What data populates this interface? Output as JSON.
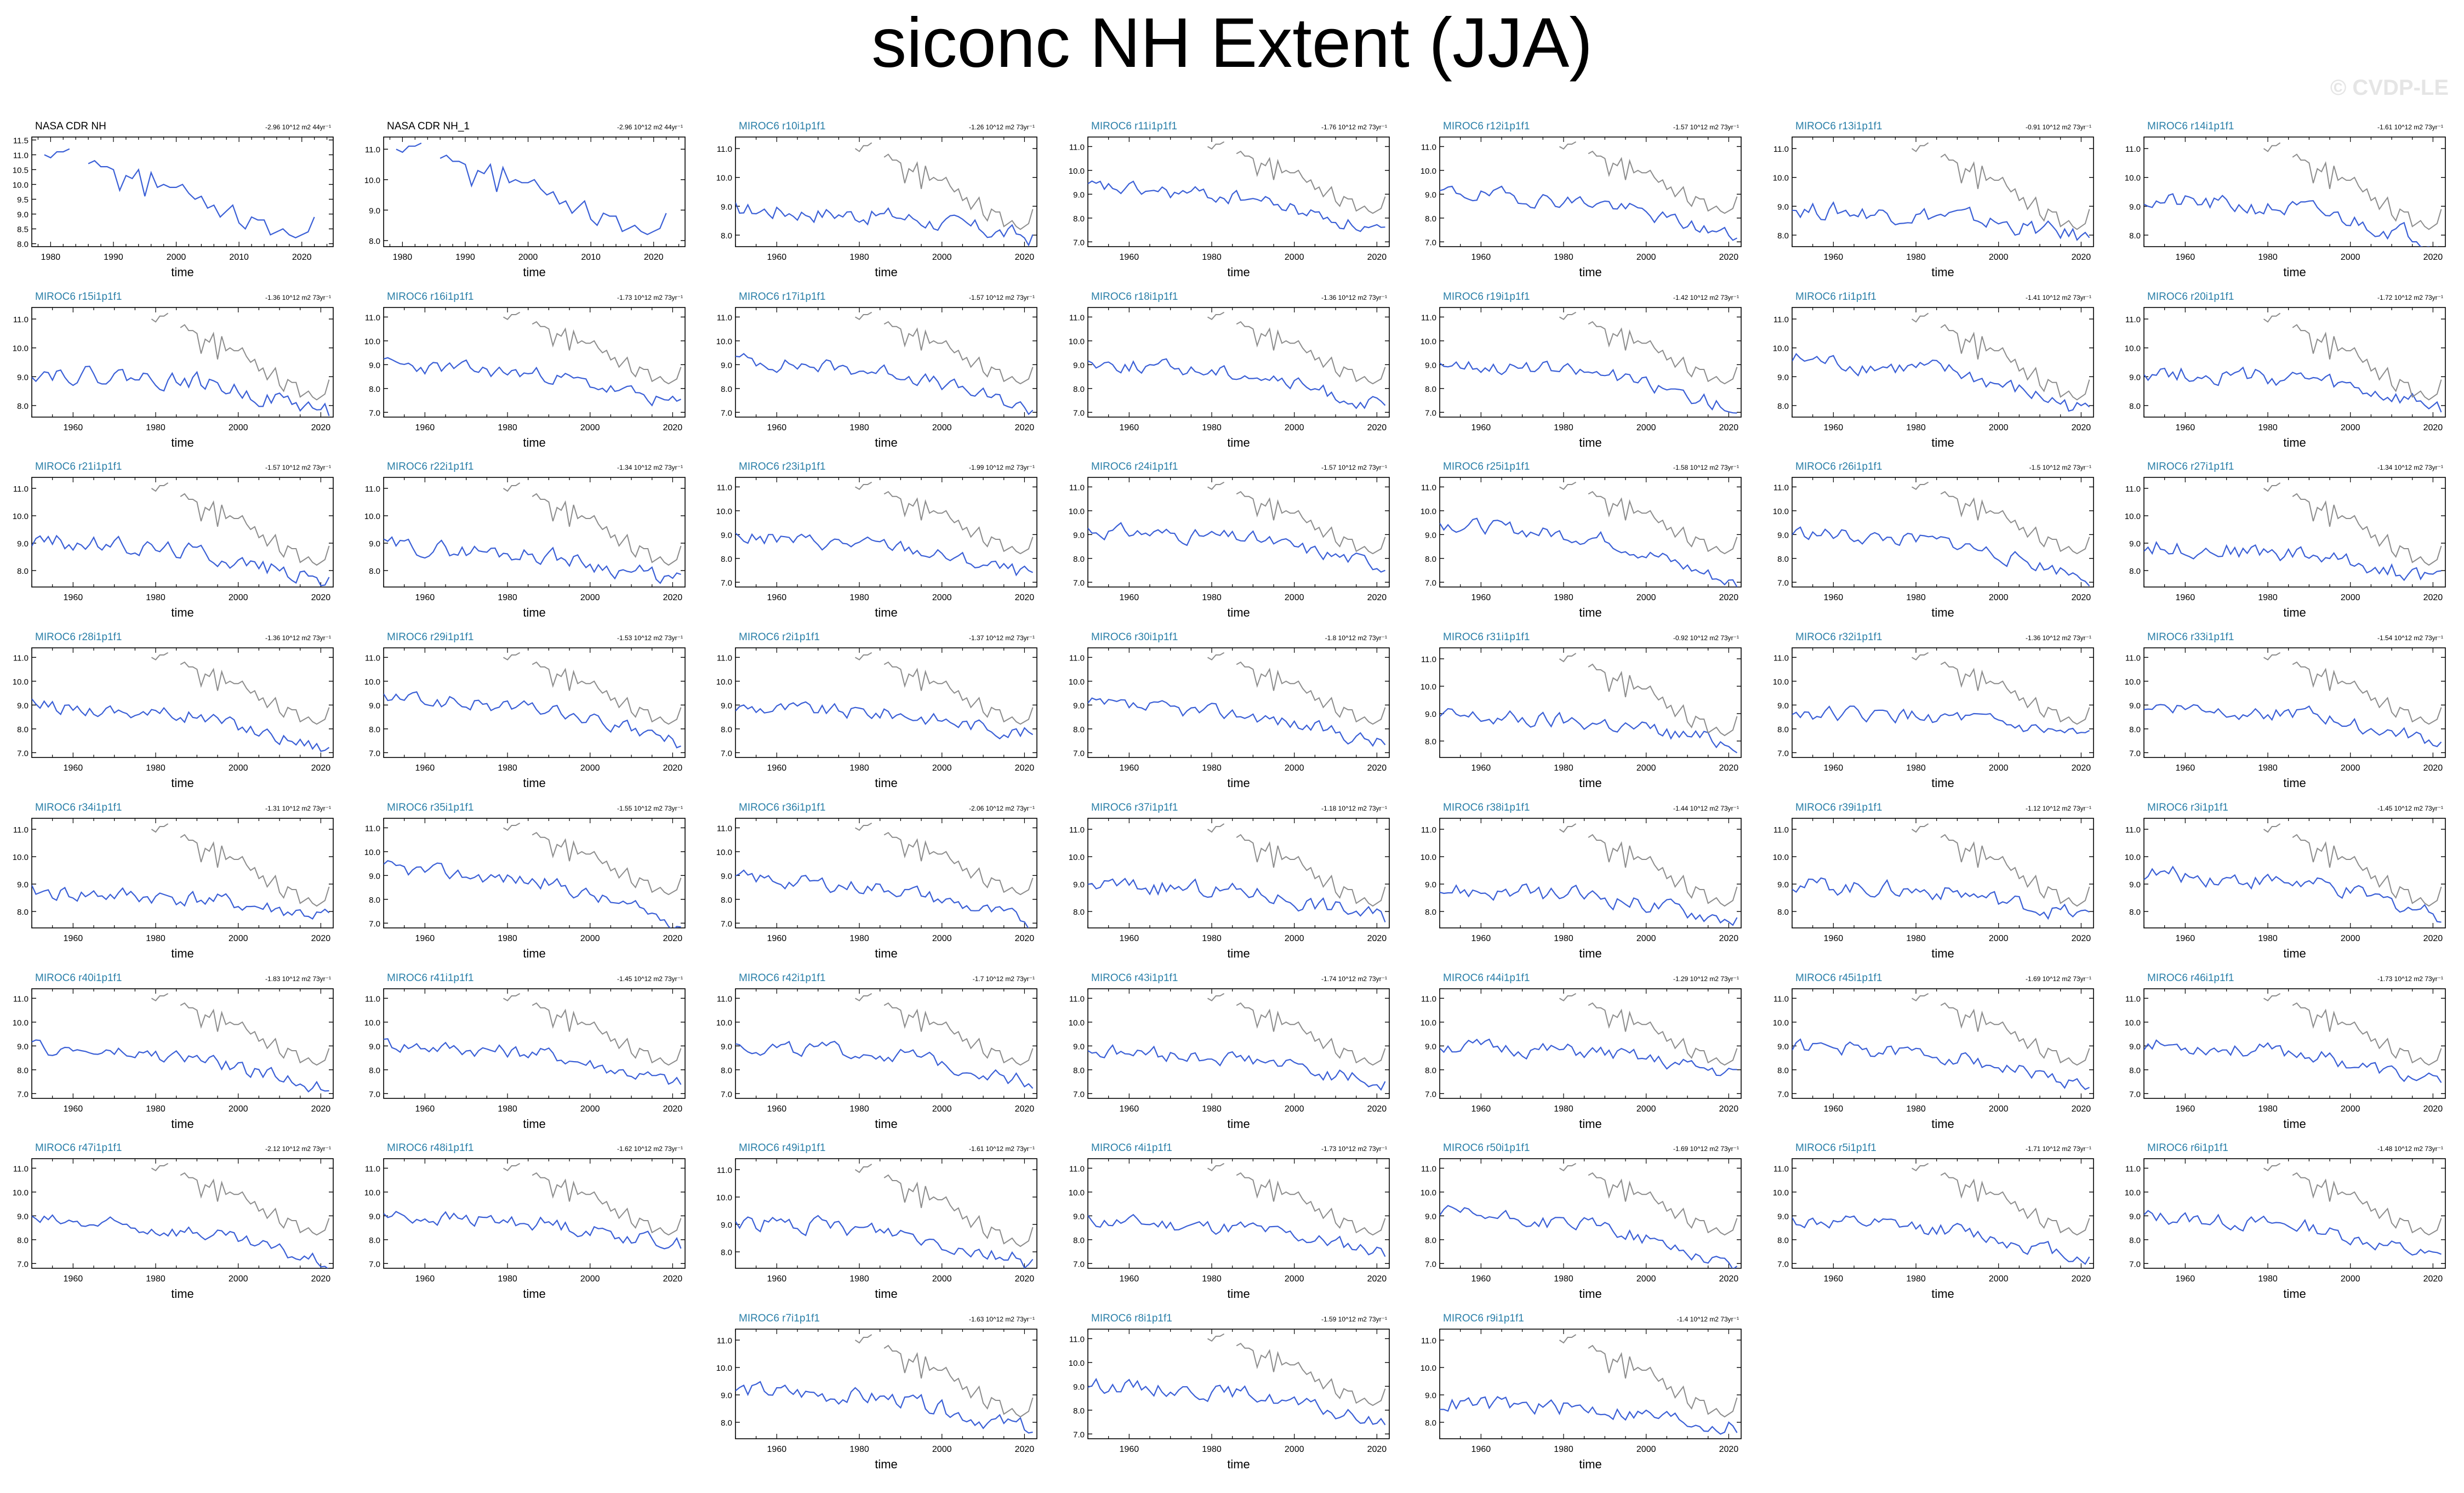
{
  "title": "siconc NH Extent (JJA)",
  "watermark": "© CVDP-LE",
  "colors": {
    "obs_line": "#3a5fd6",
    "model_line": "#3a5fd6",
    "obs_overlay": "#8c8c8c",
    "obs_title": "#000000",
    "model_title": "#2a7fa8",
    "axis": "#000000"
  },
  "chart_data": {
    "type": "line",
    "xlabel": "time",
    "layout": "small multiples, 7 columns",
    "observation_overlay": "NASA CDR NH (gray, 1979-2022) drawn on every model panel",
    "obs_series": {
      "years": [
        1979,
        1980,
        1981,
        1982,
        1983,
        1984,
        1985,
        1986,
        1987,
        1988,
        1989,
        1990,
        1991,
        1992,
        1993,
        1994,
        1995,
        1996,
        1997,
        1998,
        1999,
        2000,
        2001,
        2002,
        2003,
        2004,
        2005,
        2006,
        2007,
        2008,
        2009,
        2010,
        2011,
        2012,
        2013,
        2014,
        2015,
        2016,
        2017,
        2018,
        2019,
        2020,
        2021,
        2022
      ],
      "values": [
        11.0,
        10.9,
        11.1,
        11.1,
        11.2,
        null,
        null,
        10.7,
        10.8,
        10.6,
        10.6,
        10.5,
        9.8,
        10.3,
        10.2,
        10.5,
        9.6,
        10.4,
        9.9,
        10.0,
        9.9,
        9.9,
        10.0,
        9.7,
        9.5,
        9.6,
        9.2,
        9.3,
        8.9,
        9.1,
        9.3,
        8.7,
        8.5,
        8.9,
        8.8,
        8.8,
        8.3,
        8.4,
        8.5,
        8.3,
        8.2,
        8.3,
        8.4,
        8.9
      ]
    },
    "panels": [
      {
        "title": "NASA CDR NH",
        "trend": "-2.96 10^12 m2 44yr⁻¹",
        "kind": "obs",
        "xlim": [
          1977,
          2025
        ],
        "xticks": [
          1980,
          1990,
          2000,
          2010,
          2020
        ],
        "yticks": [
          8.0,
          8.5,
          9.0,
          9.5,
          10.0,
          10.5,
          11.0,
          11.5
        ],
        "ylim": [
          7.9,
          11.6
        ]
      },
      {
        "title": "NASA CDR NH_1",
        "trend": "-2.96 10^12 m2 44yr⁻¹",
        "kind": "obs",
        "xlim": [
          1977,
          2025
        ],
        "xticks": [
          1980,
          1990,
          2000,
          2010,
          2020
        ],
        "yticks": [
          8.0,
          9.0,
          10.0,
          11.0
        ],
        "ylim": [
          7.8,
          11.4
        ]
      },
      {
        "title": "MIROC6 r10i1p1f1",
        "trend": "-1.26 10^12 m2 73yr⁻¹",
        "yticks": [
          8.0,
          9.0,
          10.0,
          11.0
        ],
        "ylim": [
          7.6,
          11.4
        ],
        "seed": 10,
        "start": 8.9,
        "end": 7.9
      },
      {
        "title": "MIROC6 r11i1p1f1",
        "trend": "-1.76 10^12 m2 73yr⁻¹",
        "yticks": [
          7.0,
          8.0,
          9.0,
          10.0,
          11.0
        ],
        "ylim": [
          6.8,
          11.4
        ],
        "seed": 11,
        "start": 9.3,
        "end": 7.4
      },
      {
        "title": "MIROC6 r12i1p1f1",
        "trend": "-1.57 10^12 m2 73yr⁻¹",
        "yticks": [
          7.0,
          8.0,
          9.0,
          10.0,
          11.0
        ],
        "ylim": [
          6.8,
          11.4
        ],
        "seed": 12,
        "start": 9.1,
        "end": 7.2
      },
      {
        "title": "MIROC6 r13i1p1f1",
        "trend": "-0.91 10^12 m2 73yr⁻¹",
        "yticks": [
          8.0,
          9.0,
          10.0,
          11.0
        ],
        "ylim": [
          7.6,
          11.4
        ],
        "seed": 13,
        "start": 8.9,
        "end": 7.9
      },
      {
        "title": "MIROC6 r14i1p1f1",
        "trend": "-1.61 10^12 m2 73yr⁻¹",
        "yticks": [
          8.0,
          9.0,
          10.0,
          11.0
        ],
        "ylim": [
          7.6,
          11.4
        ],
        "seed": 14,
        "start": 9.2,
        "end": 7.8
      },
      {
        "title": "MIROC6 r15i1p1f1",
        "trend": "-1.36 10^12 m2 73yr⁻¹",
        "yticks": [
          8.0,
          9.0,
          10.0,
          11.0
        ],
        "ylim": [
          7.6,
          11.4
        ],
        "seed": 15,
        "start": 9.2,
        "end": 7.8
      },
      {
        "title": "MIROC6 r16i1p1f1",
        "trend": "-1.73 10^12 m2 73yr⁻¹",
        "yticks": [
          7.0,
          8.0,
          9.0,
          10.0,
          11.0
        ],
        "ylim": [
          6.8,
          11.4
        ],
        "seed": 16,
        "start": 9.0,
        "end": 7.3
      },
      {
        "title": "MIROC6 r17i1p1f1",
        "trend": "-1.57 10^12 m2 73yr⁻¹",
        "yticks": [
          7.0,
          8.0,
          9.0,
          10.0,
          11.0
        ],
        "ylim": [
          6.8,
          11.4
        ],
        "seed": 17,
        "start": 9.2,
        "end": 7.1
      },
      {
        "title": "MIROC6 r18i1p1f1",
        "trend": "-1.36 10^12 m2 73yr⁻¹",
        "yticks": [
          7.0,
          8.0,
          9.0,
          10.0,
          11.0
        ],
        "ylim": [
          6.8,
          11.4
        ],
        "seed": 18,
        "start": 9.1,
        "end": 7.2
      },
      {
        "title": "MIROC6 r19i1p1f1",
        "trend": "-1.42 10^12 m2 73yr⁻¹",
        "yticks": [
          7.0,
          8.0,
          9.0,
          10.0,
          11.0
        ],
        "ylim": [
          6.8,
          11.4
        ],
        "seed": 19,
        "start": 9.1,
        "end": 7.2
      },
      {
        "title": "MIROC6 r1i1p1f1",
        "trend": "-1.41 10^12 m2 73yr⁻¹",
        "yticks": [
          8.0,
          9.0,
          10.0,
          11.0
        ],
        "ylim": [
          7.6,
          11.4
        ],
        "seed": 1,
        "start": 9.6,
        "end": 7.8
      },
      {
        "title": "MIROC6 r20i1p1f1",
        "trend": "-1.72 10^12 m2 73yr⁻¹",
        "yticks": [
          8.0,
          9.0,
          10.0,
          11.0
        ],
        "ylim": [
          7.6,
          11.4
        ],
        "seed": 20,
        "start": 9.2,
        "end": 7.9
      },
      {
        "title": "MIROC6 r21i1p1f1",
        "trend": "-1.57 10^12 m2 73yr⁻¹",
        "yticks": [
          8.0,
          9.0,
          10.0,
          11.0
        ],
        "ylim": [
          7.4,
          11.4
        ],
        "seed": 21,
        "start": 9.1,
        "end": 7.6
      },
      {
        "title": "MIROC6 r22i1p1f1",
        "trend": "-1.34 10^12 m2 73yr⁻¹",
        "yticks": [
          8.0,
          9.0,
          10.0,
          11.0
        ],
        "ylim": [
          7.4,
          11.4
        ],
        "seed": 22,
        "start": 8.9,
        "end": 7.6
      },
      {
        "title": "MIROC6 r23i1p1f1",
        "trend": "-1.99 10^12 m2 73yr⁻¹",
        "yticks": [
          7.0,
          8.0,
          9.0,
          10.0,
          11.0
        ],
        "ylim": [
          6.8,
          11.4
        ],
        "seed": 23,
        "start": 8.9,
        "end": 7.3
      },
      {
        "title": "MIROC6 r24i1p1f1",
        "trend": "-1.57 10^12 m2 73yr⁻¹",
        "yticks": [
          7.0,
          8.0,
          9.0,
          10.0,
          11.0
        ],
        "ylim": [
          6.8,
          11.4
        ],
        "seed": 24,
        "start": 9.2,
        "end": 7.7
      },
      {
        "title": "MIROC6 r25i1p1f1",
        "trend": "-1.58 10^12 m2 73yr⁻¹",
        "yticks": [
          7.0,
          8.0,
          9.0,
          10.0,
          11.0
        ],
        "ylim": [
          6.8,
          11.4
        ],
        "seed": 25,
        "start": 9.5,
        "end": 6.9
      },
      {
        "title": "MIROC6 r26i1p1f1",
        "trend": "-1.5 10^12 m2 73yr⁻¹",
        "yticks": [
          7.0,
          8.0,
          9.0,
          10.0,
          11.0
        ],
        "ylim": [
          6.8,
          11.4
        ],
        "seed": 26,
        "start": 9.1,
        "end": 7.2
      },
      {
        "title": "MIROC6 r27i1p1f1",
        "trend": "-1.34 10^12 m2 73yr⁻¹",
        "yticks": [
          8.0,
          9.0,
          10.0,
          11.0
        ],
        "ylim": [
          7.4,
          11.4
        ],
        "seed": 27,
        "start": 8.9,
        "end": 7.7
      },
      {
        "title": "MIROC6 r28i1p1f1",
        "trend": "-1.36 10^12 m2 73yr⁻¹",
        "yticks": [
          7.0,
          8.0,
          9.0,
          10.0,
          11.0
        ],
        "ylim": [
          6.8,
          11.4
        ],
        "seed": 28,
        "start": 9.0,
        "end": 7.2
      },
      {
        "title": "MIROC6 r29i1p1f1",
        "trend": "-1.53 10^12 m2 73yr⁻¹",
        "yticks": [
          7.0,
          8.0,
          9.0,
          10.0,
          11.0
        ],
        "ylim": [
          6.8,
          11.4
        ],
        "seed": 29,
        "start": 9.3,
        "end": 7.4
      },
      {
        "title": "MIROC6 r2i1p1f1",
        "trend": "-1.37 10^12 m2 73yr⁻¹",
        "yticks": [
          7.0,
          8.0,
          9.0,
          10.0,
          11.0
        ],
        "ylim": [
          6.8,
          11.4
        ],
        "seed": 2,
        "start": 8.9,
        "end": 7.8
      },
      {
        "title": "MIROC6 r30i1p1f1",
        "trend": "-1.8 10^12 m2 73yr⁻¹",
        "yticks": [
          7.0,
          8.0,
          9.0,
          10.0,
          11.0
        ],
        "ylim": [
          6.8,
          11.4
        ],
        "seed": 30,
        "start": 9.0,
        "end": 7.4
      },
      {
        "title": "MIROC6 r31i1p1f1",
        "trend": "-0.92 10^12 m2 73yr⁻¹",
        "yticks": [
          8.0,
          9.0,
          10.0,
          11.0
        ],
        "ylim": [
          7.4,
          11.4
        ],
        "seed": 31,
        "start": 8.9,
        "end": 7.9
      },
      {
        "title": "MIROC6 r32i1p1f1",
        "trend": "-1.36 10^12 m2 73yr⁻¹",
        "yticks": [
          7.0,
          8.0,
          9.0,
          10.0,
          11.0
        ],
        "ylim": [
          6.8,
          11.4
        ],
        "seed": 32,
        "start": 8.7,
        "end": 7.6
      },
      {
        "title": "MIROC6 r33i1p1f1",
        "trend": "-1.54 10^12 m2 73yr⁻¹",
        "yticks": [
          7.0,
          8.0,
          9.0,
          10.0,
          11.0
        ],
        "ylim": [
          6.8,
          11.4
        ],
        "seed": 33,
        "start": 9.0,
        "end": 7.4
      },
      {
        "title": "MIROC6 r34i1p1f1",
        "trend": "-1.31 10^12 m2 73yr⁻¹",
        "yticks": [
          8.0,
          9.0,
          10.0,
          11.0
        ],
        "ylim": [
          7.4,
          11.4
        ],
        "seed": 34,
        "start": 8.7,
        "end": 7.8
      },
      {
        "title": "MIROC6 r35i1p1f1",
        "trend": "-1.55 10^12 m2 73yr⁻¹",
        "yticks": [
          7.0,
          8.0,
          9.0,
          10.0,
          11.0
        ],
        "ylim": [
          6.8,
          11.4
        ],
        "seed": 35,
        "start": 9.3,
        "end": 7.0
      },
      {
        "title": "MIROC6 r36i1p1f1",
        "trend": "-2.06 10^12 m2 73yr⁻¹",
        "yticks": [
          7.0,
          8.0,
          9.0,
          10.0,
          11.0
        ],
        "ylim": [
          6.8,
          11.4
        ],
        "seed": 36,
        "start": 8.9,
        "end": 7.0
      },
      {
        "title": "MIROC6 r37i1p1f1",
        "trend": "-1.18 10^12 m2 73yr⁻¹",
        "yticks": [
          8.0,
          9.0,
          10.0,
          11.0
        ],
        "ylim": [
          7.4,
          11.4
        ],
        "seed": 37,
        "start": 9.0,
        "end": 7.8
      },
      {
        "title": "MIROC6 r38i1p1f1",
        "trend": "-1.44 10^12 m2 73yr⁻¹",
        "yticks": [
          8.0,
          9.0,
          10.0,
          11.0
        ],
        "ylim": [
          7.4,
          11.4
        ],
        "seed": 38,
        "start": 8.8,
        "end": 7.7
      },
      {
        "title": "MIROC6 r39i1p1f1",
        "trend": "-1.12 10^12 m2 73yr⁻¹",
        "yticks": [
          8.0,
          9.0,
          10.0,
          11.0
        ],
        "ylim": [
          7.4,
          11.4
        ],
        "seed": 39,
        "start": 9.0,
        "end": 7.8
      },
      {
        "title": "MIROC6 r3i1p1f1",
        "trend": "-1.45 10^12 m2 73yr⁻¹",
        "yticks": [
          8.0,
          9.0,
          10.0,
          11.0
        ],
        "ylim": [
          7.4,
          11.4
        ],
        "seed": 3,
        "start": 9.4,
        "end": 7.9
      },
      {
        "title": "MIROC6 r40i1p1f1",
        "trend": "-1.83 10^12 m2 73yr⁻¹",
        "yticks": [
          7.0,
          8.0,
          9.0,
          10.0,
          11.0
        ],
        "ylim": [
          6.8,
          11.4
        ],
        "seed": 40,
        "start": 8.9,
        "end": 7.2
      },
      {
        "title": "MIROC6 r41i1p1f1",
        "trend": "-1.45 10^12 m2 73yr⁻¹",
        "yticks": [
          7.0,
          8.0,
          9.0,
          10.0,
          11.0
        ],
        "ylim": [
          6.8,
          11.4
        ],
        "seed": 41,
        "start": 9.1,
        "end": 7.4
      },
      {
        "title": "MIROC6 r42i1p1f1",
        "trend": "-1.7 10^12 m2 73yr⁻¹",
        "yticks": [
          7.0,
          8.0,
          9.0,
          10.0,
          11.0
        ],
        "ylim": [
          6.8,
          11.4
        ],
        "seed": 42,
        "start": 9.0,
        "end": 7.5
      },
      {
        "title": "MIROC6 r43i1p1f1",
        "trend": "-1.74 10^12 m2 73yr⁻¹",
        "yticks": [
          7.0,
          8.0,
          9.0,
          10.0,
          11.0
        ],
        "ylim": [
          6.8,
          11.4
        ],
        "seed": 43,
        "start": 8.8,
        "end": 7.4
      },
      {
        "title": "MIROC6 r44i1p1f1",
        "trend": "-1.29 10^12 m2 73yr⁻¹",
        "yticks": [
          7.0,
          8.0,
          9.0,
          10.0,
          11.0
        ],
        "ylim": [
          6.8,
          11.4
        ],
        "seed": 44,
        "start": 9.0,
        "end": 7.8
      },
      {
        "title": "MIROC6 r45i1p1f1",
        "trend": "-1.69 10^12 m2 73yr⁻¹",
        "yticks": [
          7.0,
          8.0,
          9.0,
          10.0,
          11.0
        ],
        "ylim": [
          6.8,
          11.4
        ],
        "seed": 45,
        "start": 9.0,
        "end": 7.3
      },
      {
        "title": "MIROC6 r46i1p1f1",
        "trend": "-1.73 10^12 m2 73yr⁻¹",
        "yticks": [
          7.0,
          8.0,
          9.0,
          10.0,
          11.0
        ],
        "ylim": [
          6.8,
          11.4
        ],
        "seed": 46,
        "start": 9.1,
        "end": 7.4
      },
      {
        "title": "MIROC6 r47i1p1f1",
        "trend": "-2.12 10^12 m2 73yr⁻¹",
        "yticks": [
          7.0,
          8.0,
          9.0,
          10.0,
          11.0
        ],
        "ylim": [
          6.8,
          11.4
        ],
        "seed": 47,
        "start": 8.8,
        "end": 7.0
      },
      {
        "title": "MIROC6 r48i1p1f1",
        "trend": "-1.62 10^12 m2 73yr⁻¹",
        "yticks": [
          7.0,
          8.0,
          9.0,
          10.0,
          11.0
        ],
        "ylim": [
          6.8,
          11.4
        ],
        "seed": 48,
        "start": 9.0,
        "end": 7.8
      },
      {
        "title": "MIROC6 r49i1p1f1",
        "trend": "-1.61 10^12 m2 73yr⁻¹",
        "yticks": [
          8.0,
          9.0,
          10.0,
          11.0
        ],
        "ylim": [
          7.4,
          11.4
        ],
        "seed": 49,
        "start": 9.1,
        "end": 7.6
      },
      {
        "title": "MIROC6 r4i1p1f1",
        "trend": "-1.73 10^12 m2 73yr⁻¹",
        "yticks": [
          7.0,
          8.0,
          9.0,
          10.0,
          11.0
        ],
        "ylim": [
          6.8,
          11.4
        ],
        "seed": 4,
        "start": 8.8,
        "end": 7.5
      },
      {
        "title": "MIROC6 r50i1p1f1",
        "trend": "-1.69 10^12 m2 73yr⁻¹",
        "yticks": [
          7.0,
          8.0,
          9.0,
          10.0,
          11.0
        ],
        "ylim": [
          6.8,
          11.4
        ],
        "seed": 50,
        "start": 9.1,
        "end": 6.9
      },
      {
        "title": "MIROC6 r5i1p1f1",
        "trend": "-1.71 10^12 m2 73yr⁻¹",
        "yticks": [
          7.0,
          8.0,
          9.0,
          10.0,
          11.0
        ],
        "ylim": [
          6.8,
          11.4
        ],
        "seed": 5,
        "start": 8.8,
        "end": 7.2
      },
      {
        "title": "MIROC6 r6i1p1f1",
        "trend": "-1.48 10^12 m2 73yr⁻¹",
        "yticks": [
          7.0,
          8.0,
          9.0,
          10.0,
          11.0
        ],
        "ylim": [
          6.8,
          11.4
        ],
        "seed": 6,
        "start": 9.0,
        "end": 7.2
      },
      {
        "title": "MIROC6 r7i1p1f1",
        "trend": "-1.63 10^12 m2 73yr⁻¹",
        "yticks": [
          8.0,
          9.0,
          10.0,
          11.0
        ],
        "ylim": [
          7.4,
          11.4
        ],
        "seed": 7,
        "start": 9.2,
        "end": 7.7
      },
      {
        "title": "MIROC6 r8i1p1f1",
        "trend": "-1.59 10^12 m2 73yr⁻¹",
        "yticks": [
          7.0,
          8.0,
          9.0,
          10.0,
          11.0
        ],
        "ylim": [
          6.8,
          11.4
        ],
        "seed": 8,
        "start": 9.1,
        "end": 7.4
      },
      {
        "title": "MIROC6 r9i1p1f1",
        "trend": "-1.4 10^12 m2 73yr⁻¹",
        "yticks": [
          8.0,
          9.0,
          10.0,
          11.0
        ],
        "ylim": [
          7.4,
          11.4
        ],
        "seed": 9,
        "start": 8.7,
        "end": 7.8
      }
    ],
    "model_xlim": [
      1950,
      2023
    ],
    "model_xticks": [
      1960,
      1980,
      2000,
      2020
    ]
  }
}
